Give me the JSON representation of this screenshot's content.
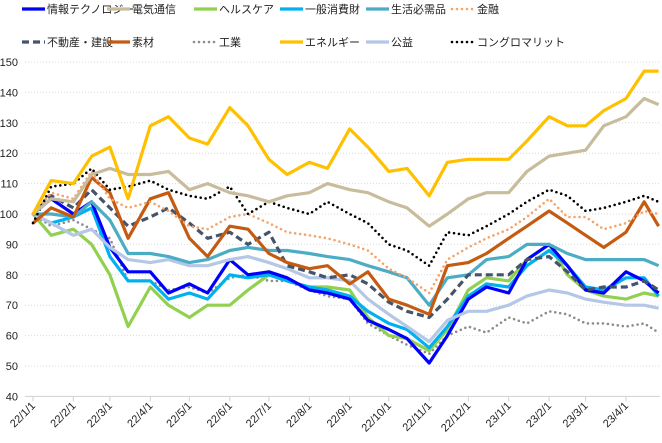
{
  "chart_data": {
    "type": "line",
    "title": "",
    "xlabel": "",
    "ylabel": "",
    "ylim": [
      40,
      150
    ],
    "yticks": [
      40,
      50,
      60,
      70,
      80,
      90,
      100,
      110,
      120,
      130,
      140,
      150
    ],
    "grid": true,
    "legend_position": "top",
    "xtick_labels": [
      "22/1/1",
      "22/2/1",
      "22/3/1",
      "22/4/1",
      "22/5/1",
      "22/6/1",
      "22/7/1",
      "22/8/1",
      "22/9/1",
      "22/10/1",
      "22/11/1",
      "22/12/1",
      "23/1/1",
      "23/2/1",
      "23/3/1",
      "23/4/1"
    ],
    "xtick_dates": [
      "2022-01-01",
      "2022-02-01",
      "2022-03-01",
      "2022-04-01",
      "2022-05-01",
      "2022-06-01",
      "2022-07-01",
      "2022-08-01",
      "2022-09-01",
      "2022-10-01",
      "2022-11-01",
      "2022-12-01",
      "2023-01-01",
      "2023-02-01",
      "2023-03-01",
      "2023-04-01"
    ],
    "x": [
      "2022-01-01",
      "2022-01-15",
      "2022-02-01",
      "2022-02-15",
      "2022-03-01",
      "2022-03-15",
      "2022-04-01",
      "2022-04-15",
      "2022-05-01",
      "2022-05-15",
      "2022-06-01",
      "2022-06-15",
      "2022-07-01",
      "2022-07-15",
      "2022-08-01",
      "2022-08-15",
      "2022-09-01",
      "2022-09-15",
      "2022-10-01",
      "2022-10-15",
      "2022-11-01",
      "2022-11-15",
      "2022-12-01",
      "2022-12-15",
      "2023-01-01",
      "2023-01-15",
      "2023-02-01",
      "2023-02-15",
      "2023-03-01",
      "2023-03-15",
      "2023-04-01",
      "2023-04-15",
      "2023-04-26"
    ],
    "series": [
      {
        "name": "情報テクノロジー",
        "color": "#0000FF",
        "style": "solid",
        "values": [
          100,
          105,
          100,
          104,
          89,
          81,
          81,
          74,
          77,
          74,
          85,
          80,
          81,
          79,
          75,
          74,
          72,
          65,
          62,
          59,
          51,
          60,
          72,
          76,
          74,
          85,
          90,
          83,
          75,
          74,
          81,
          78,
          74
        ]
      },
      {
        "name": "電気通信",
        "color": "#C9BC9C",
        "style": "solid",
        "values": [
          100,
          105,
          104,
          113,
          115,
          113,
          113,
          114,
          108,
          110,
          107,
          106,
          104,
          106,
          107,
          110,
          108,
          107,
          104,
          102,
          96,
          100,
          105,
          107,
          107,
          114,
          119,
          120,
          121,
          129,
          132,
          138,
          136
        ]
      },
      {
        "name": "ヘルスケア",
        "color": "#92D050",
        "style": "solid",
        "values": [
          100,
          93,
          95,
          90,
          80,
          63,
          76,
          70,
          66,
          70,
          70,
          75,
          80,
          78,
          76,
          76,
          75,
          66,
          60,
          59,
          55,
          62,
          75,
          79,
          78,
          85,
          90,
          80,
          75,
          73,
          72,
          74,
          73
        ]
      },
      {
        "name": "一般消費財",
        "color": "#00B0F0",
        "style": "solid",
        "values": [
          100,
          97,
          99,
          102,
          86,
          78,
          78,
          72,
          74,
          72,
          80,
          79,
          80,
          78,
          76,
          75,
          73,
          68,
          64,
          62,
          56,
          63,
          73,
          77,
          76,
          83,
          88,
          83,
          76,
          75,
          79,
          79,
          73
        ]
      },
      {
        "name": "生活必需品",
        "color": "#4BACC6",
        "style": "solid",
        "values": [
          100,
          100,
          99,
          104,
          98,
          87,
          87,
          86,
          84,
          85,
          88,
          89,
          88,
          88,
          87,
          86,
          85,
          83,
          81,
          79,
          70,
          79,
          80,
          85,
          86,
          90,
          90,
          87,
          85,
          85,
          85,
          85,
          83
        ]
      },
      {
        "name": "金融",
        "color": "#F4A46A",
        "style": "dotted",
        "values": [
          100,
          107,
          105,
          114,
          105,
          102,
          104,
          101,
          96,
          95,
          99,
          100,
          97,
          94,
          93,
          92,
          90,
          88,
          82,
          79,
          74,
          85,
          89,
          92,
          95,
          99,
          105,
          99,
          99,
          95,
          97,
          101,
          100
        ]
      },
      {
        "name": "不動産・建設",
        "color": "#44546A",
        "style": "dashed",
        "values": [
          100,
          106,
          102,
          108,
          102,
          96,
          99,
          102,
          97,
          92,
          94,
          90,
          94,
          83,
          81,
          79,
          80,
          77,
          71,
          68,
          66,
          72,
          80,
          80,
          80,
          85,
          86,
          81,
          75,
          76,
          76,
          78,
          75
        ]
      },
      {
        "name": "素材",
        "color": "#C55A11",
        "style": "solid",
        "values": [
          97,
          102,
          99,
          112,
          107,
          92,
          105,
          107,
          92,
          86,
          96,
          95,
          87,
          84,
          82,
          83,
          77,
          81,
          72,
          70,
          67,
          83,
          84,
          87,
          92,
          96,
          101,
          97,
          93,
          89,
          94,
          104,
          96
        ]
      },
      {
        "name": "工業",
        "color": "#8C8C8C",
        "style": "dotted",
        "values": [
          100,
          96,
          98,
          95,
          92,
          78,
          78,
          75,
          76,
          74,
          79,
          80,
          78,
          78,
          75,
          73,
          72,
          64,
          60,
          57,
          54,
          60,
          63,
          61,
          66,
          64,
          68,
          67,
          64,
          64,
          63,
          64,
          61
        ]
      },
      {
        "name": "エネルギー",
        "color": "#FFC000",
        "style": "solid",
        "values": [
          100,
          111,
          110,
          119,
          122,
          105,
          129,
          132,
          125,
          123,
          135,
          129,
          118,
          113,
          117,
          115,
          128,
          122,
          114,
          115,
          106,
          117,
          118,
          118,
          118,
          124,
          132,
          129,
          129,
          134,
          138,
          147,
          147
        ]
      },
      {
        "name": "公益",
        "color": "#B4C7E7",
        "style": "solid",
        "values": [
          100,
          97,
          93,
          95,
          89,
          85,
          84,
          85,
          83,
          83,
          85,
          86,
          84,
          82,
          79,
          79,
          78,
          72,
          67,
          63,
          58,
          65,
          68,
          68,
          70,
          73,
          75,
          74,
          72,
          71,
          70,
          70,
          69
        ]
      },
      {
        "name": "コングロマリット",
        "color": "#000000",
        "style": "dotted",
        "values": [
          97,
          109,
          110,
          115,
          108,
          109,
          111,
          108,
          106,
          105,
          109,
          100,
          104,
          102,
          100,
          104,
          100,
          97,
          90,
          88,
          83,
          94,
          93,
          96,
          100,
          104,
          108,
          106,
          101,
          102,
          104,
          106,
          104
        ]
      }
    ],
    "draw_order": [
      "工業",
      "ヘルスケア",
      "一般消費財",
      "情報テクノロジー",
      "公益",
      "生活必需品",
      "不動産・建設",
      "素材",
      "金融",
      "コングロマリット",
      "電気通信",
      "エネルギー"
    ]
  }
}
